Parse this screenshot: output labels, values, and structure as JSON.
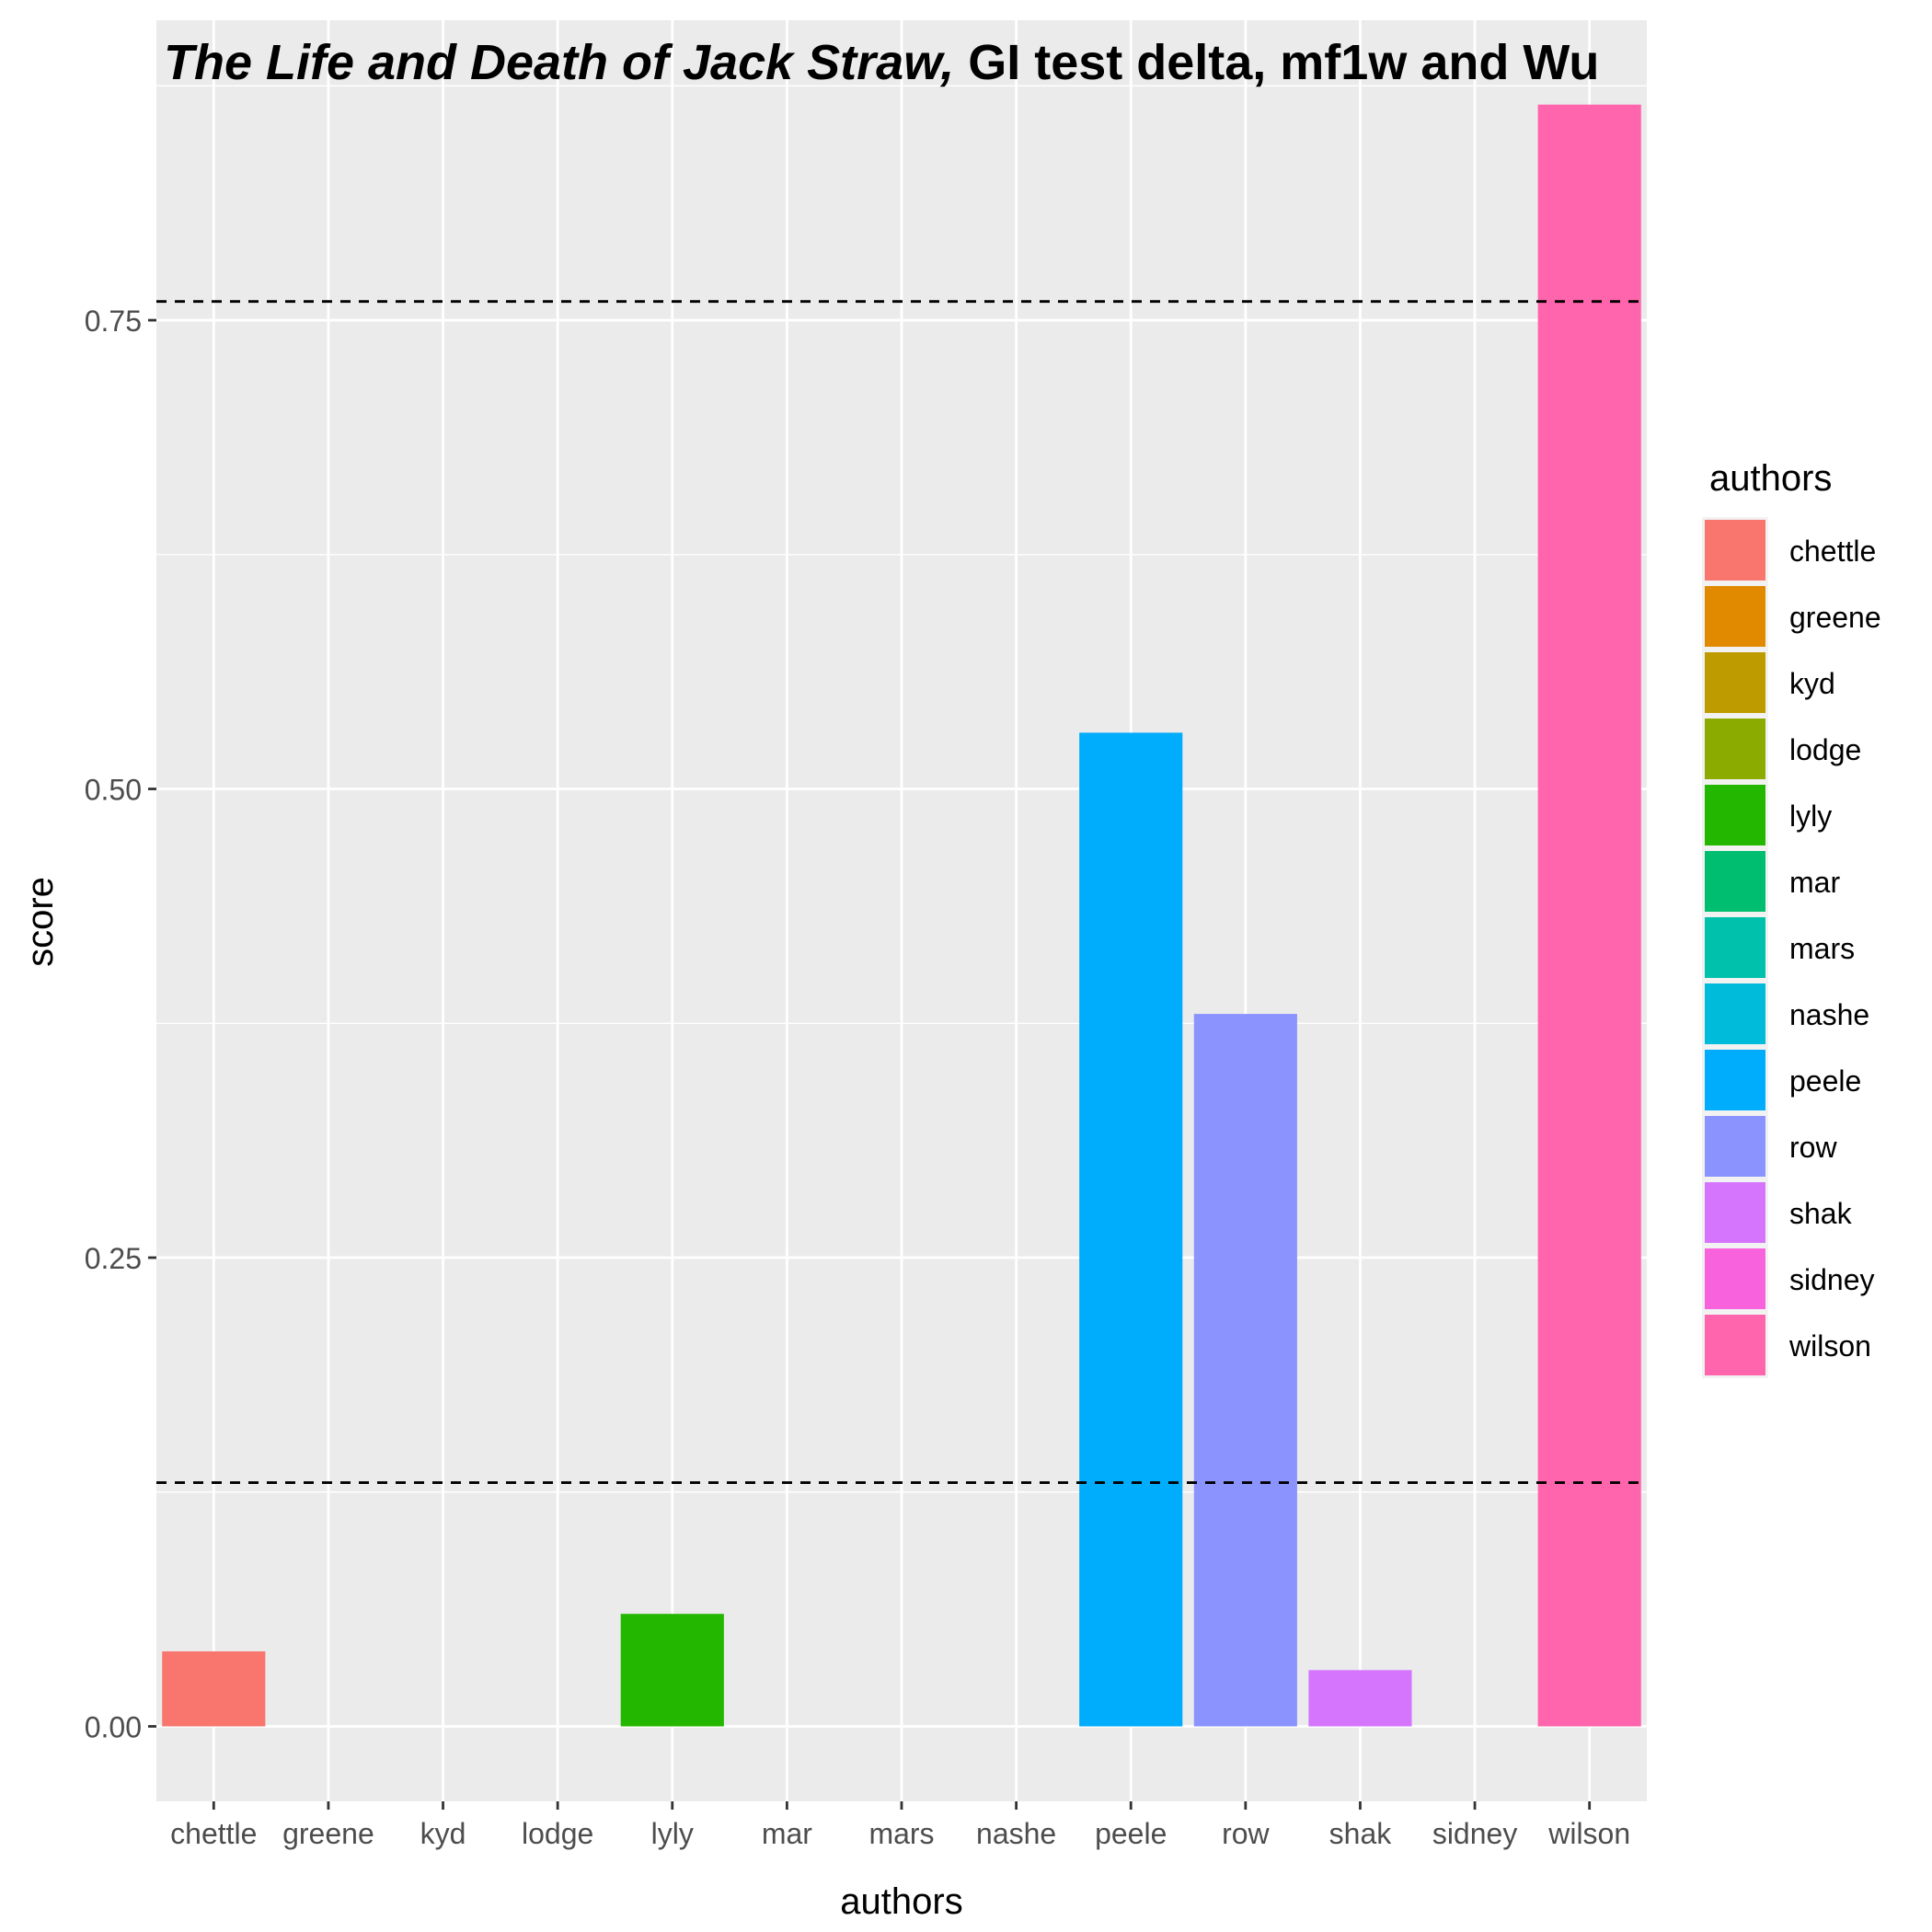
{
  "chart_data": {
    "type": "bar",
    "title_italic": "The Life and Death of Jack Straw,",
    "title_rest": " GI test delta, mf1w and Wu",
    "xlabel": "authors",
    "ylabel": "score",
    "categories": [
      "chettle",
      "greene",
      "kyd",
      "lodge",
      "lyly",
      "mar",
      "mars",
      "nashe",
      "peele",
      "row",
      "shak",
      "sidney",
      "wilson"
    ],
    "values": [
      0.04,
      0,
      0,
      0,
      0.06,
      0,
      0,
      0,
      0.53,
      0.38,
      0.03,
      0,
      0.865
    ],
    "colors": [
      "#F8766D",
      "#E18A00",
      "#BE9C00",
      "#8CAB00",
      "#24B700",
      "#00BE70",
      "#00C1AB",
      "#00BBDA",
      "#00ACFC",
      "#8B93FF",
      "#D575FE",
      "#F962DD",
      "#FF65AC"
    ],
    "ylim": [
      -0.04,
      0.91
    ],
    "yticks": [
      0.0,
      0.25,
      0.5,
      0.75
    ],
    "ytick_labels": [
      "0.00",
      "0.25",
      "0.50",
      "0.75"
    ],
    "hlines": [
      0.76,
      0.13
    ],
    "grid": true,
    "legend": {
      "title": "authors",
      "position": "right",
      "entries": [
        "chettle",
        "greene",
        "kyd",
        "lodge",
        "lyly",
        "mar",
        "mars",
        "nashe",
        "peele",
        "row",
        "shak",
        "sidney",
        "wilson"
      ]
    },
    "panel_background": "#EBEBEB"
  }
}
